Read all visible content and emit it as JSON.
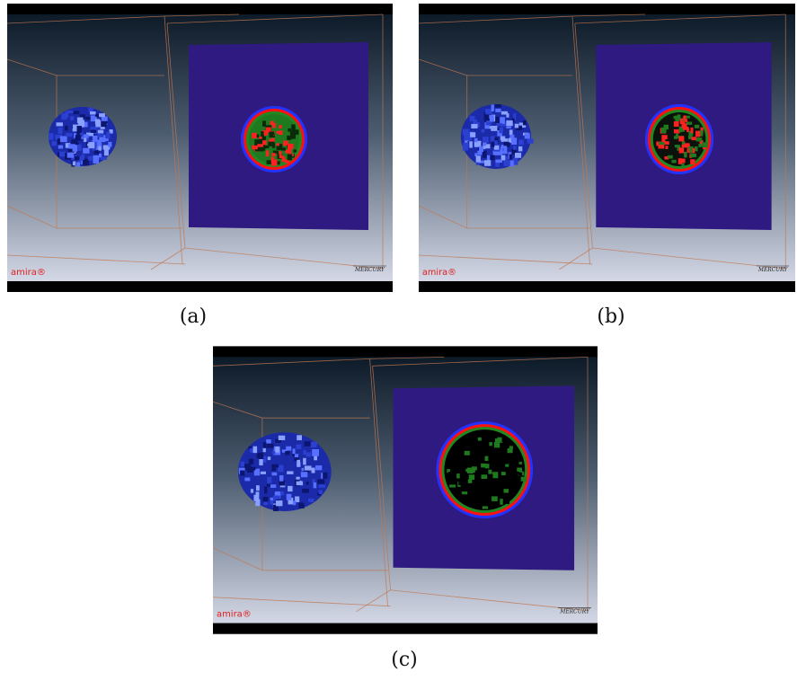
{
  "panels": [
    {
      "caption": "(a)",
      "logo": "amira®",
      "brand": "MERCURY"
    },
    {
      "caption": "(b)",
      "logo": "amira®",
      "brand": "MERCURY"
    },
    {
      "caption": "(c)",
      "logo": "amira®",
      "brand": "MERCURY"
    }
  ]
}
